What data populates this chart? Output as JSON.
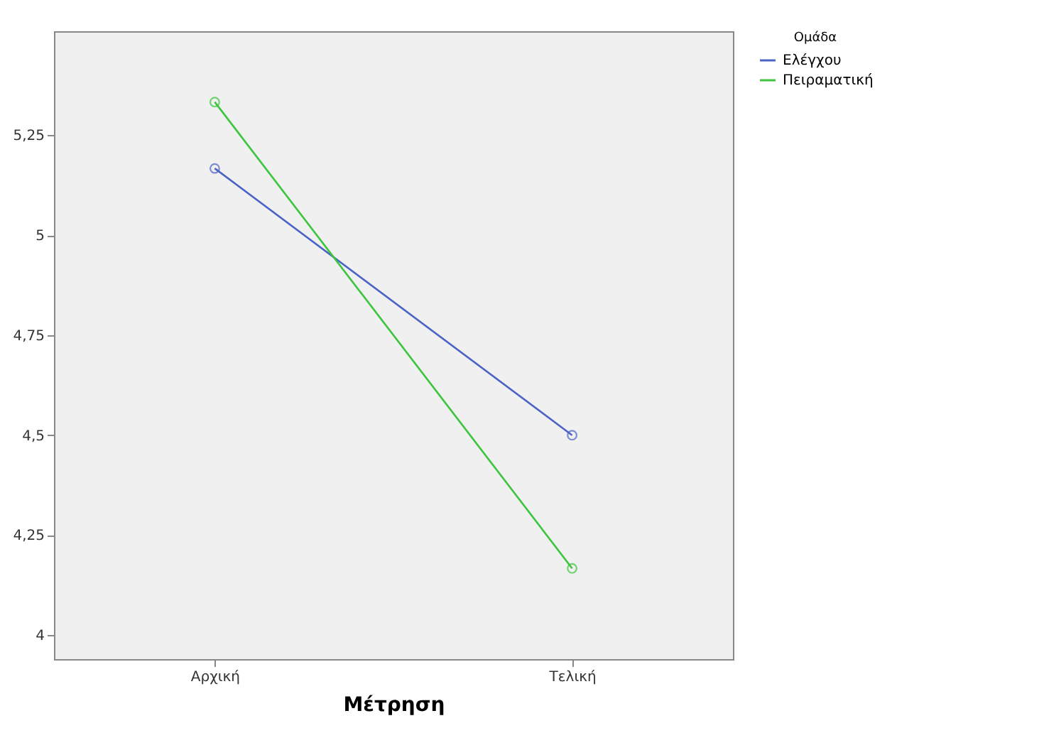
{
  "chart_data": {
    "type": "line",
    "xlabel": "Μέτρηση",
    "legend_title": "Ομάδα",
    "legend": "right",
    "marker": "circle",
    "grid": false,
    "categories": [
      "Αρχική",
      "Τελική"
    ],
    "series": [
      {
        "name": "Ελέγχου",
        "color": "#4a63c4",
        "values": [
          5.167,
          4.5
        ]
      },
      {
        "name": "Πειραματική",
        "color": "#3cc43c",
        "values": [
          5.333,
          4.167
        ]
      }
    ],
    "ylim": [
      3.94,
      5.51
    ],
    "yticks": [
      4,
      {
        "value": 4.25,
        "label": "4,25"
      },
      {
        "value": 4.5,
        "label": "4,5"
      },
      {
        "value": 4.75,
        "label": "4,75"
      },
      5,
      {
        "value": 5.25,
        "label": "5,25"
      }
    ]
  }
}
